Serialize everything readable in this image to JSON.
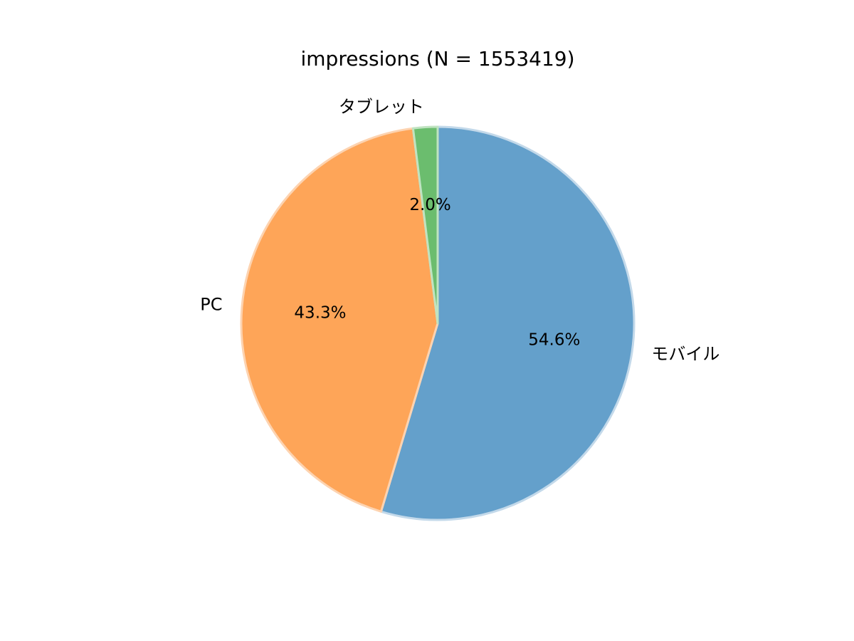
{
  "chart_data": {
    "type": "pie",
    "title": "impressions (N = 1553419)",
    "labels": [
      "モバイル",
      "PC",
      "タブレット"
    ],
    "values": [
      54.6,
      43.3,
      2.0
    ],
    "percent_labels": [
      "54.6%",
      "43.3%",
      "2.0%"
    ],
    "colors": [
      "#64a0cb",
      "#fea558",
      "#6bbd6e"
    ],
    "edge_colors": [
      "#c3d9ea",
      "#fdd3b0",
      "#c0e3c1"
    ],
    "start_angle": "top",
    "direction": "clockwise"
  }
}
